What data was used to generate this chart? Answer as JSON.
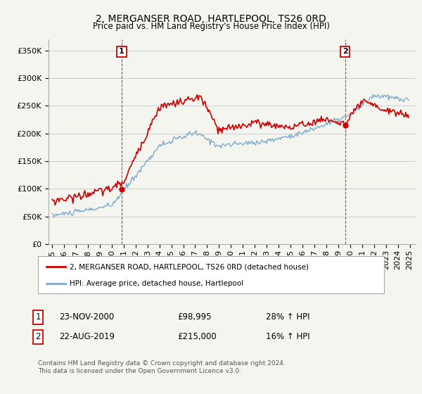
{
  "title": "2, MERGANSER ROAD, HARTLEPOOL, TS26 0RD",
  "subtitle": "Price paid vs. HM Land Registry's House Price Index (HPI)",
  "ylabel_ticks": [
    "£0",
    "£50K",
    "£100K",
    "£150K",
    "£200K",
    "£250K",
    "£300K",
    "£350K"
  ],
  "ytick_values": [
    0,
    50000,
    100000,
    150000,
    200000,
    250000,
    300000,
    350000
  ],
  "ylim": [
    0,
    370000
  ],
  "legend_line1": "2, MERGANSER ROAD, HARTLEPOOL, TS26 0RD (detached house)",
  "legend_line2": "HPI: Average price, detached house, Hartlepool",
  "transaction1_date": "23-NOV-2000",
  "transaction1_price": "£98,995",
  "transaction1_hpi": "28% ↑ HPI",
  "transaction2_date": "22-AUG-2019",
  "transaction2_price": "£215,000",
  "transaction2_hpi": "16% ↑ HPI",
  "footer": "Contains HM Land Registry data © Crown copyright and database right 2024.\nThis data is licensed under the Open Government Licence v3.0.",
  "price_color": "#cc0000",
  "hpi_color": "#7eaacc",
  "vline_color": "#cc0000",
  "background_color": "#f5f5f0",
  "grid_color": "#cccccc",
  "xlim_left": 1994.7,
  "xlim_right": 2025.5
}
